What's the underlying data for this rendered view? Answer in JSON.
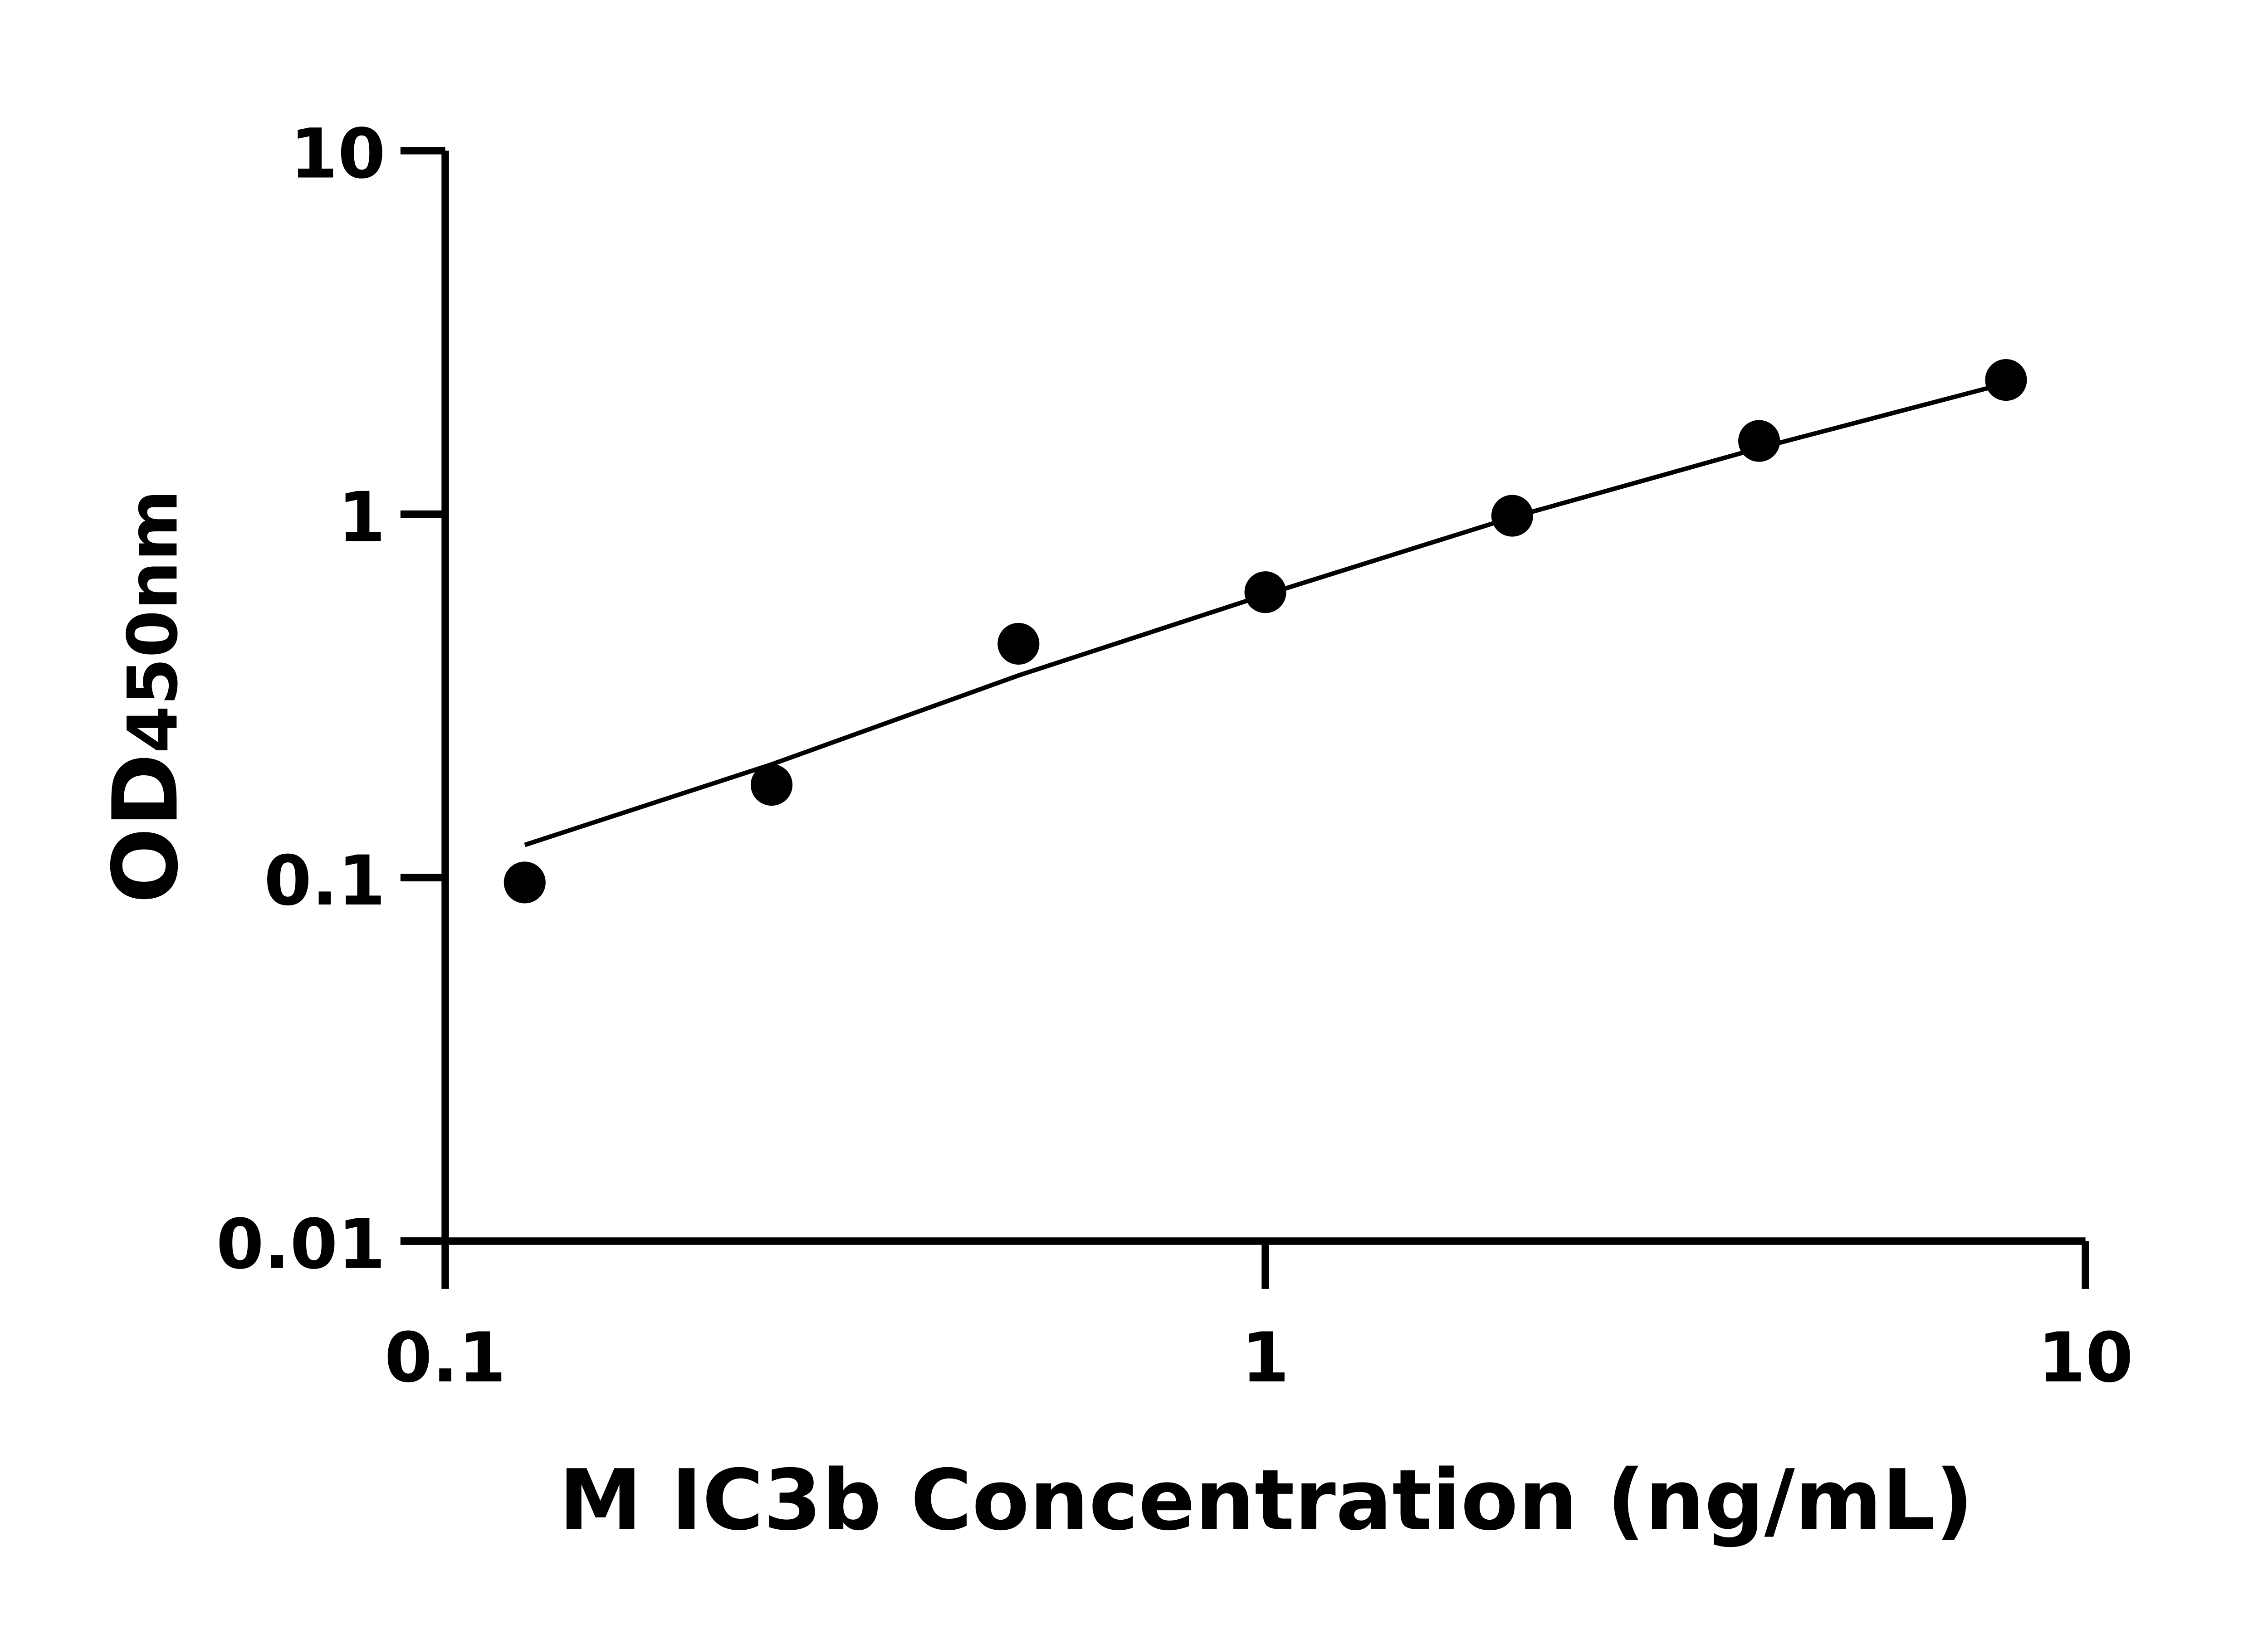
{
  "chart_data": {
    "type": "scatter",
    "title": "",
    "xlabel": "M IC3b Concentration (ng/mL)",
    "ylabel_main": "OD",
    "ylabel_sub": "450nm",
    "x_scale": "log",
    "y_scale": "log",
    "xlim": [
      0.1,
      10
    ],
    "ylim": [
      0.01,
      10
    ],
    "x_ticks": [
      {
        "value": 0.1,
        "label": "0.1"
      },
      {
        "value": 1,
        "label": "1"
      },
      {
        "value": 10,
        "label": "10"
      }
    ],
    "y_ticks": [
      {
        "value": 0.01,
        "label": "0.01"
      },
      {
        "value": 0.1,
        "label": "0.1"
      },
      {
        "value": 1,
        "label": "1"
      },
      {
        "value": 10,
        "label": "10"
      }
    ],
    "grid": false,
    "points": [
      {
        "x": 0.125,
        "y": 0.097
      },
      {
        "x": 0.25,
        "y": 0.18
      },
      {
        "x": 0.5,
        "y": 0.44
      },
      {
        "x": 1,
        "y": 0.61
      },
      {
        "x": 2,
        "y": 0.99
      },
      {
        "x": 4,
        "y": 1.59
      },
      {
        "x": 8,
        "y": 2.34
      }
    ],
    "fit_line": [
      {
        "x": 0.125,
        "y": 0.123
      },
      {
        "x": 0.25,
        "y": 0.205
      },
      {
        "x": 0.5,
        "y": 0.36
      },
      {
        "x": 1,
        "y": 0.6
      },
      {
        "x": 2,
        "y": 0.98
      },
      {
        "x": 4,
        "y": 1.52
      },
      {
        "x": 8,
        "y": 2.29
      }
    ],
    "colors": {
      "points": "#000000",
      "line": "#000000",
      "axes": "#000000"
    }
  }
}
